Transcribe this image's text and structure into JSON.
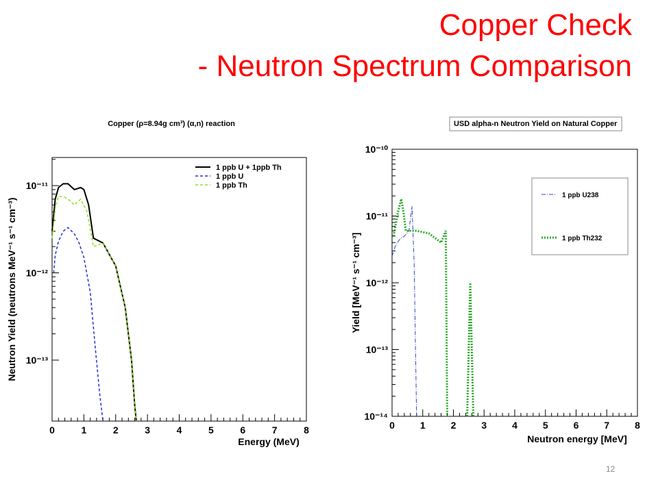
{
  "slide": {
    "title_lines": [
      "Copper Check",
      "- Neutron Spectrum Comparison"
    ],
    "page_number": "12"
  },
  "chart_data": [
    {
      "type": "line",
      "title": "Copper  (ρ=8.94g cm³) (α,n) reaction",
      "x_label": "Energy (MeV)",
      "y_label": "Neutron Yield (neutrons MeV⁻¹ s⁻¹ cm⁻³)",
      "log_y": true,
      "xlim": [
        0,
        8
      ],
      "ylim": [
        2e-14,
        2.1e-11
      ],
      "xticks": [
        0,
        1,
        2,
        3,
        4,
        5,
        6,
        7,
        8
      ],
      "yticks": [
        {
          "value": 1e-13,
          "label": "10⁻¹³"
        },
        {
          "value": 1e-12,
          "label": "10⁻¹²"
        },
        {
          "value": 1e-11,
          "label": "10⁻¹¹"
        }
      ],
      "series": [
        {
          "name": "1 ppb U + 1ppb Th",
          "color": "#000000",
          "style": "solid",
          "x": [
            0,
            0.1,
            0.2,
            0.35,
            0.5,
            0.7,
            0.9,
            1.0,
            1.15,
            1.3,
            1.6,
            2.0,
            2.3,
            2.5,
            2.6,
            2.65
          ],
          "values": [
            3e-12,
            7e-12,
            9.5e-12,
            1.05e-11,
            1.05e-11,
            9e-12,
            9.5e-12,
            9e-12,
            6e-12,
            2.5e-12,
            2.2e-12,
            1.2e-12,
            4e-13,
            1e-13,
            3e-14,
            2e-14
          ]
        },
        {
          "name": "1 ppb U",
          "color": "#1f2fd0",
          "style": "dashed",
          "x": [
            0.05,
            0.1,
            0.2,
            0.35,
            0.5,
            0.7,
            0.85,
            1.0,
            1.2,
            1.35,
            1.5,
            1.6
          ],
          "values": [
            1e-12,
            1.6e-12,
            2.3e-12,
            3e-12,
            3.3e-12,
            2.8e-12,
            2.2e-12,
            1.5e-12,
            6e-13,
            1.5e-13,
            4e-14,
            2e-14
          ]
        },
        {
          "name": "1 ppb Th",
          "color": "#8de020",
          "style": "dashed",
          "x": [
            0,
            0.1,
            0.2,
            0.35,
            0.5,
            0.7,
            0.9,
            1.1,
            1.25,
            1.3,
            1.6,
            2.0,
            2.3,
            2.5,
            2.6,
            2.65
          ],
          "values": [
            2.5e-12,
            5.5e-12,
            7.5e-12,
            7.5e-12,
            7e-12,
            6e-12,
            7e-12,
            5e-12,
            2.5e-12,
            2e-12,
            2.2e-12,
            1.2e-12,
            4e-13,
            1e-13,
            3e-14,
            2e-14
          ]
        }
      ]
    },
    {
      "type": "line",
      "title": "USD alpha-n Neutron Yield on Natural Copper",
      "x_label": "Neutron energy [MeV]",
      "y_label": "Yield [MeV⁻¹ s⁻¹ cm⁻³]",
      "log_y": true,
      "xlim": [
        0,
        8
      ],
      "ylim": [
        1e-14,
        1e-10
      ],
      "xticks": [
        0,
        1,
        2,
        3,
        4,
        5,
        6,
        7,
        8
      ],
      "yticks": [
        {
          "value": 1e-14,
          "label": "10⁻¹⁴"
        },
        {
          "value": 1e-13,
          "label": "10⁻¹³"
        },
        {
          "value": 1e-12,
          "label": "10⁻¹²"
        },
        {
          "value": 1e-11,
          "label": "10⁻¹¹"
        },
        {
          "value": 1e-10,
          "label": "10⁻¹⁰"
        }
      ],
      "series": [
        {
          "name": "1 ppb U238",
          "color": "#3040c0",
          "style": "dashdot",
          "x": [
            0,
            0.1,
            0.25,
            0.4,
            0.55,
            0.65,
            0.72,
            0.8
          ],
          "values": [
            2.5e-12,
            3.5e-12,
            4.5e-12,
            5e-12,
            6e-12,
            1.4e-11,
            2e-12,
            1e-14
          ]
        },
        {
          "name": "1 ppb Th232",
          "color": "#22aa22",
          "style": "dotted",
          "x": [
            0.05,
            0.2,
            0.3,
            0.38,
            0.45,
            0.8,
            1.2,
            1.6,
            1.75,
            1.8,
            2.0,
            2.45,
            2.55,
            2.65
          ],
          "values": [
            5e-12,
            1.2e-11,
            1.8e-11,
            1.1e-11,
            6e-12,
            6e-12,
            5.5e-12,
            4e-12,
            6e-12,
            1e-14,
            null,
            1e-14,
            1e-12,
            1e-14
          ]
        }
      ]
    }
  ]
}
